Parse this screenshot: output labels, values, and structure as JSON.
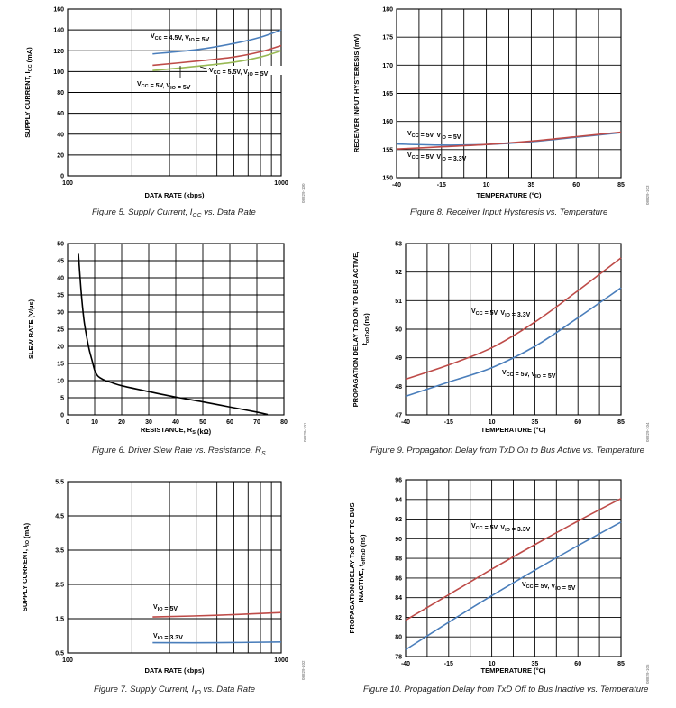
{
  "colors": {
    "blue": "#4a7ebb",
    "red": "#be4b48",
    "green": "#98b954",
    "black": "#000000"
  },
  "chart_data": [
    {
      "id": "fig5",
      "type": "line",
      "log_x": true,
      "caption": "Figure 5. Supply Current, ICC vs. Data Rate",
      "xlabel": "DATA RATE (kbps)",
      "ylabel": "SUPPLY CURRENT, ICC (mA)",
      "xlim": [
        100,
        1000
      ],
      "ylim": [
        0,
        160
      ],
      "xticks": [
        100,
        1000
      ],
      "yticks": [
        0,
        20,
        40,
        60,
        80,
        100,
        120,
        140,
        160
      ],
      "fig_id": "08829-100",
      "series": [
        {
          "name": "VCC = 4.5V, VIO = 5V",
          "color": "blue",
          "x": [
            250,
            400,
            600,
            800,
            1000
          ],
          "y": [
            117,
            121,
            127,
            133,
            140
          ]
        },
        {
          "name": "VCC = 5V, VIO = 5V",
          "color": "red",
          "x": [
            250,
            400,
            600,
            800,
            1000
          ],
          "y": [
            106,
            110,
            114,
            119,
            125
          ]
        },
        {
          "name": "VCC = 5.5V, VIO = 5V",
          "color": "green",
          "x": [
            250,
            400,
            600,
            800,
            1000
          ],
          "y": [
            101,
            105,
            109,
            114,
            120
          ]
        }
      ],
      "annotations": [
        {
          "text": "VCC = 4.5V, VIO = 5V"
        },
        {
          "text": "VCC = 5.5V, VIO = 5V"
        },
        {
          "text": "VCC = 5V, VIO = 5V"
        }
      ]
    },
    {
      "id": "fig8",
      "type": "line",
      "log_x": false,
      "caption": "Figure 8. Receiver Input Hysteresis vs. Temperature",
      "xlabel": "TEMPERATURE (°C)",
      "ylabel": "RECEIVER INPUT HYSTERESIS (mV)",
      "xlim": [
        -40,
        85
      ],
      "ylim": [
        150,
        180
      ],
      "xticks": [
        -40,
        -15,
        10,
        35,
        60,
        85
      ],
      "yticks": [
        150,
        155,
        160,
        165,
        170,
        175,
        180
      ],
      "fig_id": "08829-103",
      "series": [
        {
          "name": "VCC = 5V, VIO = 5V",
          "color": "blue",
          "x": [
            -40,
            -15,
            10,
            35,
            60,
            85
          ],
          "y": [
            156.0,
            155.8,
            155.9,
            156.4,
            157.2,
            158.0
          ]
        },
        {
          "name": "VCC = 5V, VIO = 3.3V",
          "color": "red",
          "x": [
            -40,
            -15,
            10,
            35,
            60,
            85
          ],
          "y": [
            155.1,
            155.5,
            155.9,
            156.5,
            157.3,
            158.1
          ]
        }
      ],
      "annotations": [
        {
          "text": "VCC = 5V, VIO = 5V"
        },
        {
          "text": "VCC = 5V, VIO = 3.3V"
        }
      ]
    },
    {
      "id": "fig6",
      "type": "line",
      "log_x": false,
      "caption": "Figure 6. Driver Slew Rate vs. Resistance, RS",
      "xlabel": "RESISTANCE, RS (kΩ)",
      "ylabel": "SLEW RATE (V/µs)",
      "xlim": [
        0,
        80
      ],
      "ylim": [
        0,
        50
      ],
      "xticks": [
        0,
        10,
        20,
        30,
        40,
        50,
        60,
        70,
        80
      ],
      "yticks": [
        0,
        5,
        10,
        15,
        20,
        25,
        30,
        35,
        40,
        45,
        50
      ],
      "fig_id": "08829-101",
      "series": [
        {
          "name": "",
          "color": "black",
          "x": [
            4,
            5,
            6,
            7,
            8,
            9,
            10,
            11,
            12,
            14,
            16,
            20,
            30,
            40,
            50,
            60,
            70,
            74
          ],
          "y": [
            47,
            36,
            28,
            23,
            19,
            16,
            13,
            11.5,
            10.8,
            10.0,
            9.5,
            8.5,
            6.8,
            5.2,
            3.8,
            2.3,
            0.8,
            0.1
          ]
        }
      ]
    },
    {
      "id": "fig9",
      "type": "line",
      "log_x": false,
      "caption": "Figure 9. Propagation Delay from TxD On to Bus Active vs. Temperature",
      "xlabel": "TEMPERATURE (°C)",
      "ylabel": "PROPAGATION DELAY TxD ON TO BUS ACTIVE, tonTxD (ns)",
      "ylabel_lines": [
        "PROPAGATION DELAY TxD ON TO BUS ACTIVE,",
        "tonTxD (ns)"
      ],
      "xlim": [
        -40,
        85
      ],
      "ylim": [
        47,
        53
      ],
      "xticks": [
        -40,
        -15,
        10,
        35,
        60,
        85
      ],
      "yticks": [
        47,
        48,
        49,
        50,
        51,
        52,
        53
      ],
      "fig_id": "08829-104",
      "series": [
        {
          "name": "VCC = 5V, VIO = 3.3V",
          "color": "red",
          "x": [
            -40,
            -15,
            10,
            35,
            60,
            85
          ],
          "y": [
            48.25,
            48.75,
            49.35,
            50.25,
            51.35,
            52.5
          ]
        },
        {
          "name": "VCC = 5V, VIO = 5V",
          "color": "blue",
          "x": [
            -40,
            -15,
            10,
            35,
            60,
            85
          ],
          "y": [
            47.65,
            48.15,
            48.65,
            49.4,
            50.4,
            51.45
          ]
        }
      ],
      "annotations": [
        {
          "text": "VCC = 5V, VIO = 3.3V"
        },
        {
          "text": "VCC = 5V, VIO = 5V"
        }
      ]
    },
    {
      "id": "fig7",
      "type": "line",
      "log_x": true,
      "caption": "Figure 7. Supply Current, IIO vs. Data Rate",
      "xlabel": "DATA RATE (kbps)",
      "ylabel": "SUPPLY CURRENT, IIO (mA)",
      "xlim": [
        100,
        1000
      ],
      "ylim": [
        0.5,
        5.5
      ],
      "xticks": [
        100,
        1000
      ],
      "yticks": [
        0.5,
        1.5,
        2.5,
        3.5,
        4.5,
        5.5
      ],
      "ytick_labels": [
        "0.5",
        "1.5",
        "2.5",
        "3.5",
        "4.5",
        "5.5"
      ],
      "fig_id": "08829-102",
      "series": [
        {
          "name": "VIO = 5V",
          "color": "red",
          "x": [
            250,
            500,
            1000
          ],
          "y": [
            1.55,
            1.6,
            1.68
          ]
        },
        {
          "name": "VIO = 3.3V",
          "color": "blue",
          "x": [
            250,
            500,
            1000
          ],
          "y": [
            0.8,
            0.8,
            0.82
          ]
        }
      ],
      "annotations": [
        {
          "text": "VIO = 5V"
        },
        {
          "text": "VIO = 3.3V"
        }
      ]
    },
    {
      "id": "fig10",
      "type": "line",
      "log_x": false,
      "caption": "Figure 10. Propagation Delay from TxD Off to Bus Inactive vs. Temperature",
      "xlabel": "TEMPERATURE (°C)",
      "ylabel": "PROPAGATION DELAY TxD OFF TO BUS INACTIVE, toffTxD (ns)",
      "ylabel_lines": [
        "PROPAGATION DELAY TxD OFF TO BUS",
        "INACTIVE, toffTxD (ns)"
      ],
      "xlim": [
        -40,
        85
      ],
      "ylim": [
        78,
        96
      ],
      "xticks": [
        -40,
        -15,
        10,
        35,
        60,
        85
      ],
      "yticks": [
        78,
        80,
        82,
        84,
        86,
        88,
        90,
        92,
        94,
        96
      ],
      "fig_id": "08829-105",
      "series": [
        {
          "name": "VCC = 5V, VIO = 3.3V",
          "color": "red",
          "x": [
            -40,
            -15,
            10,
            35,
            60,
            85
          ],
          "y": [
            81.7,
            84.3,
            86.9,
            89.4,
            91.8,
            94.1
          ]
        },
        {
          "name": "VCC = 5V, VIO = 5V",
          "color": "blue",
          "x": [
            -40,
            -15,
            10,
            35,
            60,
            85
          ],
          "y": [
            78.7,
            81.5,
            84.2,
            86.8,
            89.3,
            91.7
          ]
        }
      ],
      "annotations": [
        {
          "text": "VCC = 5V, VIO = 3.3V"
        },
        {
          "text": "VCC = 5V, VIO = 5V"
        }
      ]
    }
  ]
}
